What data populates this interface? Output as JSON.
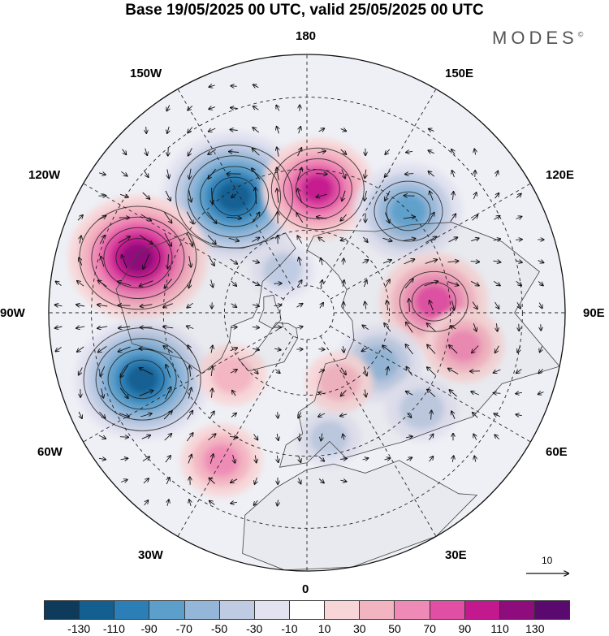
{
  "title": "Base 19/05/2025 00 UTC, valid 25/05/2025 00 UTC",
  "brand": {
    "name": "MODES",
    "mark": "©"
  },
  "longitude_labels": {
    "n180": "180",
    "w150": "150W",
    "e150": "150E",
    "w120": "120W",
    "e120": "120E",
    "w90": "90W",
    "e90": "90E",
    "w60": "60W",
    "e60": "60E",
    "w30": "30W",
    "e30": "30E",
    "s0": "0"
  },
  "reference_vector": {
    "label": "10"
  },
  "colorbar": {
    "colors": [
      "#0e3a5c",
      "#135f90",
      "#2b7fb6",
      "#5d9fcb",
      "#94b6d8",
      "#bfcbe3",
      "#e2e2f0",
      "#ffffff",
      "#f8d6d8",
      "#f3b4c1",
      "#ee8ab5",
      "#e04fa4",
      "#c4198e",
      "#8e0c7c",
      "#5a0a6e"
    ],
    "ticks": [
      "-130",
      "-110",
      "-90",
      "-70",
      "-50",
      "-30",
      "-10",
      "10",
      "30",
      "50",
      "70",
      "90",
      "110",
      "130"
    ]
  },
  "anomaly_centers": [
    {
      "lon": -148,
      "lat": 42,
      "value": -110
    },
    {
      "lon": 175,
      "lat": 46,
      "value": 75
    },
    {
      "lon": 135,
      "lat": 40,
      "value": -70
    },
    {
      "lon": -108,
      "lat": 30,
      "value": 105
    },
    {
      "lon": 95,
      "lat": 45,
      "value": 70
    },
    {
      "lon": 78,
      "lat": 35,
      "value": 40
    },
    {
      "lon": -68,
      "lat": 30,
      "value": -100
    },
    {
      "lon": -30,
      "lat": 32,
      "value": 40
    },
    {
      "lon": 55,
      "lat": 58,
      "value": -45
    },
    {
      "lon": 50,
      "lat": 38,
      "value": -30
    },
    {
      "lon": 10,
      "lat": 45,
      "value": -20
    },
    {
      "lon": -50,
      "lat": 55,
      "value": 25
    },
    {
      "lon": 25,
      "lat": 62,
      "value": 25
    },
    {
      "lon": -150,
      "lat": 72,
      "value": -20
    }
  ]
}
